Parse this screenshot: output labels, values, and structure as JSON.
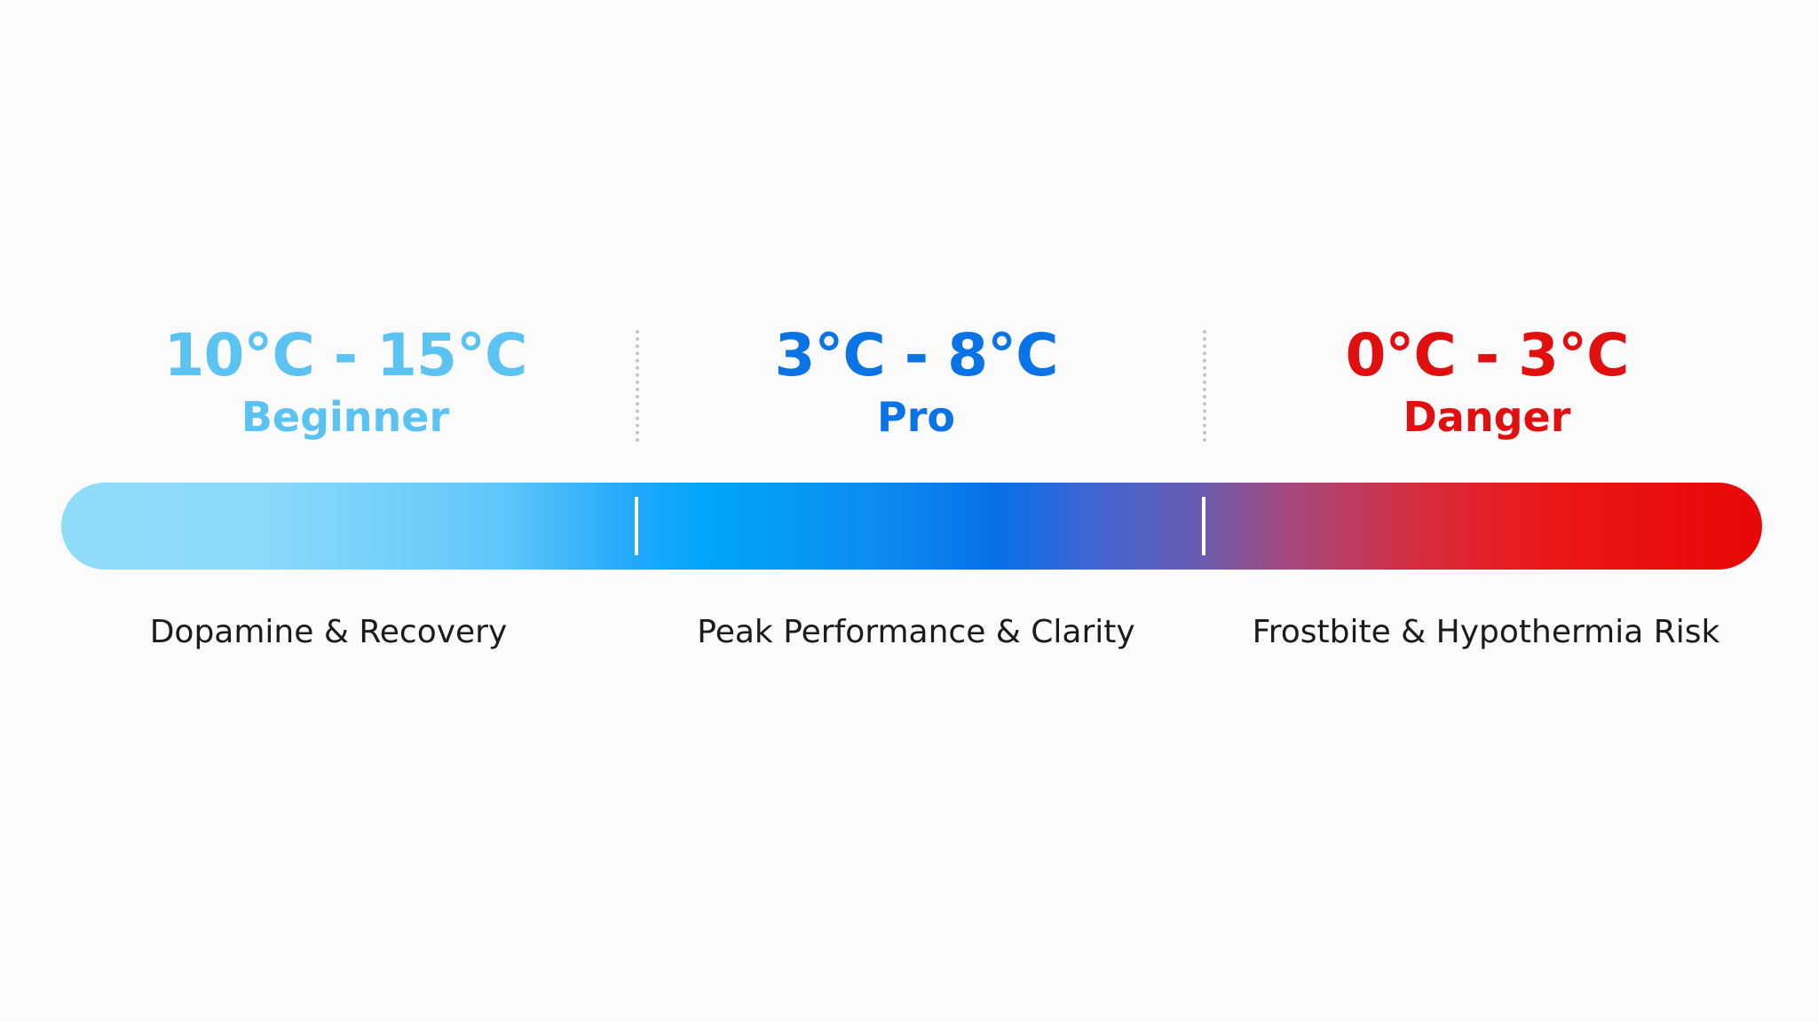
{
  "zones": [
    {
      "range": "10°C - 15°C",
      "level": "Beginner",
      "effect": "Dopamine & Recovery",
      "color": "#5bc3f2"
    },
    {
      "range": "3°C - 8°C",
      "level": "Pro",
      "effect": "Peak Performance & Clarity",
      "color": "#0a73e6"
    },
    {
      "range": "0°C - 3°C",
      "level": "Danger",
      "effect": "Frostbite & Hypothermia Risk",
      "color": "#e01010"
    }
  ],
  "gradient_colors": [
    "#8fdcf9",
    "#00a6fb",
    "#0770e8",
    "#a34a80",
    "#e80707"
  ]
}
